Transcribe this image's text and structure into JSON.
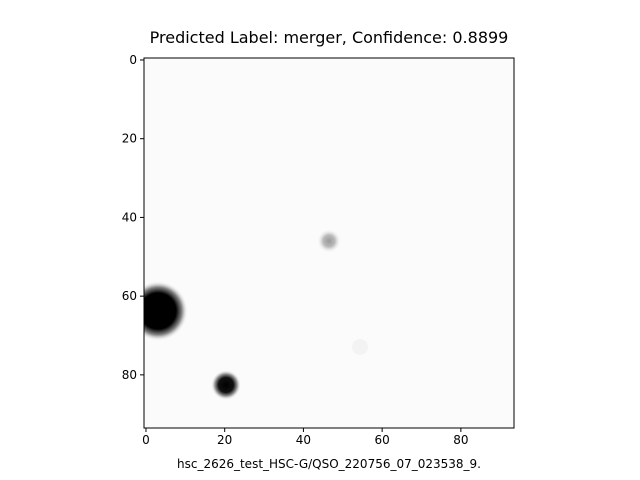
{
  "chart_data": {
    "type": "image",
    "title": "Predicted Label: merger, Confidence: 0.8899",
    "x_label": "hsc_2626_test_HSC-G/QSO_220756_07_023538_9.",
    "xlim": [
      -0.5,
      93.5
    ],
    "ylim": [
      93.5,
      -0.5
    ],
    "xticks": [
      0,
      20,
      40,
      60,
      80
    ],
    "yticks": [
      0,
      20,
      40,
      60,
      80
    ]
  }
}
